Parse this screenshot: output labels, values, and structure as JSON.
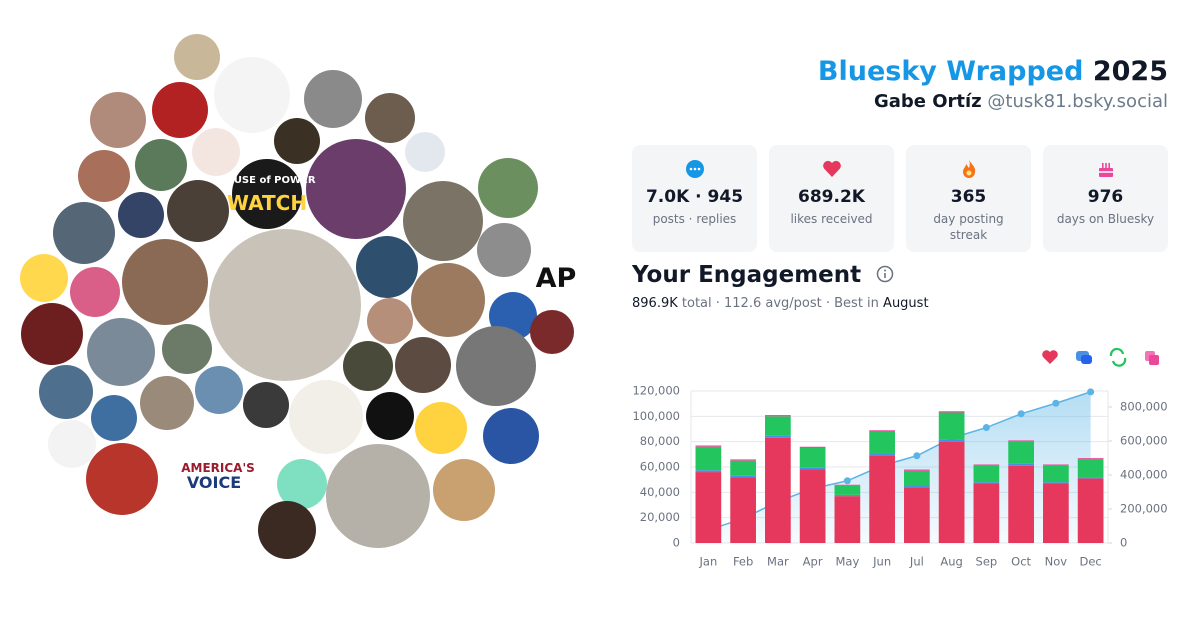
{
  "header": {
    "title": "Bluesky Wrapped",
    "year": "2025",
    "name": "Gabe Ortíz",
    "handle": "@tusk81.bsky.social"
  },
  "stats": [
    {
      "value": "7.0K · 945",
      "label": "posts · replies"
    },
    {
      "value": "689.2K",
      "label": "likes received"
    },
    {
      "value": "365",
      "label": "day posting streak"
    },
    {
      "value": "976",
      "label": "days on Bluesky"
    }
  ],
  "engagement": {
    "title": "Your Engagement",
    "total": "896.9K",
    "summary": "total · 112.6 avg/post · Best in",
    "best_month": "August"
  },
  "avatar_texts": [
    "ABUSE of POWER",
    "WATCH",
    "AP",
    "AMERICA'S",
    "VOICE"
  ],
  "chart_data": {
    "type": "bar",
    "stacked": true,
    "categories": [
      "Jan",
      "Feb",
      "Mar",
      "Apr",
      "May",
      "Jun",
      "Jul",
      "Aug",
      "Sep",
      "Oct",
      "Nov",
      "Dec"
    ],
    "series": [
      {
        "color": "#e5385c",
        "values": [
          56000,
          52000,
          83000,
          58000,
          37000,
          69000,
          44000,
          80000,
          47000,
          61000,
          47000,
          51000
        ]
      },
      {
        "color": "#4a90e2",
        "values": [
          1500,
          1500,
          2000,
          1500,
          1000,
          2000,
          1000,
          2000,
          1000,
          1500,
          1000,
          1000
        ]
      },
      {
        "color": "#22c55e",
        "values": [
          18500,
          11500,
          15000,
          15500,
          7500,
          17000,
          12000,
          21000,
          13000,
          17500,
          13000,
          14000
        ]
      },
      {
        "color": "#ec4899",
        "values": [
          1000,
          1000,
          1000,
          1000,
          500,
          1000,
          1000,
          1000,
          1000,
          1000,
          1000,
          1000
        ]
      },
      {
        "type": "line",
        "axis": "y2",
        "color": "#5ab4e5",
        "values": [
          77000,
          143000,
          244000,
          320000,
          366000,
          455000,
          513000,
          617000,
          679000,
          760000,
          822000,
          889000
        ]
      }
    ],
    "ylim": [
      0,
      120000
    ],
    "yticks": [
      0,
      {
        "value": 20000,
        "label": "20,000"
      },
      {
        "value": 40000,
        "label": "40,000"
      },
      {
        "value": 60000,
        "label": "60,000"
      },
      {
        "value": 80000,
        "label": "80,000"
      },
      {
        "value": 100000,
        "label": "100,000"
      },
      {
        "value": 120000,
        "label": "120,000"
      }
    ],
    "y2lim": [
      0,
      894000
    ],
    "y2ticks": [
      0,
      {
        "value": 200000,
        "label": "200,000"
      },
      {
        "value": 400000,
        "label": "400,000"
      },
      {
        "value": 600000,
        "label": "600,000"
      },
      {
        "value": 800000,
        "label": "800,000"
      }
    ],
    "grid": true
  }
}
